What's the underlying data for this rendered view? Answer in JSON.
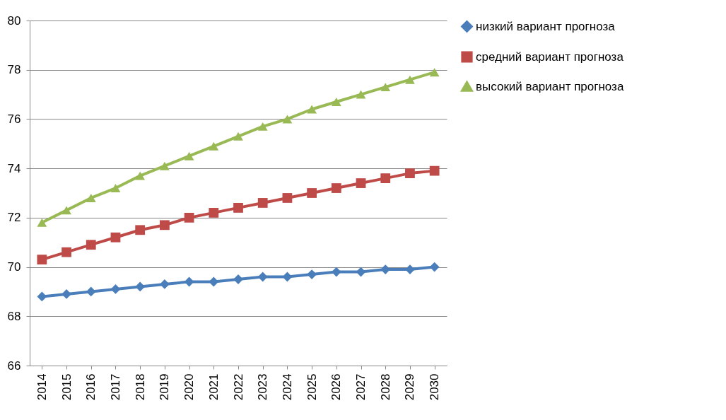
{
  "chart_data": {
    "type": "line",
    "categories": [
      "2014",
      "2015",
      "2016",
      "2017",
      "2018",
      "2019",
      "2020",
      "2021",
      "2022",
      "2023",
      "2024",
      "2025",
      "2026",
      "2027",
      "2028",
      "2029",
      "2030"
    ],
    "series": [
      {
        "name": "низкий вариант прогноза",
        "color": "#4a7ebb",
        "marker": "diamond",
        "values": [
          68.8,
          68.9,
          69.0,
          69.1,
          69.2,
          69.3,
          69.4,
          69.4,
          69.5,
          69.6,
          69.6,
          69.7,
          69.8,
          69.8,
          69.9,
          69.9,
          70.0
        ]
      },
      {
        "name": "средний вариант прогноза",
        "color": "#be4b48",
        "marker": "square",
        "values": [
          70.3,
          70.6,
          70.9,
          71.2,
          71.5,
          71.7,
          72.0,
          72.2,
          72.4,
          72.6,
          72.8,
          73.0,
          73.2,
          73.4,
          73.6,
          73.8,
          73.9
        ]
      },
      {
        "name": "высокий вариант прогноза",
        "color": "#98b954",
        "marker": "triangle",
        "values": [
          71.8,
          72.3,
          72.8,
          73.2,
          73.7,
          74.1,
          74.5,
          74.9,
          75.3,
          75.7,
          76.0,
          76.4,
          76.7,
          77.0,
          77.3,
          77.6,
          77.9
        ]
      }
    ],
    "ylim": [
      66,
      80
    ],
    "yticks": [
      66,
      68,
      70,
      72,
      74,
      76,
      78,
      80
    ],
    "grid": "y",
    "legend": "right"
  }
}
